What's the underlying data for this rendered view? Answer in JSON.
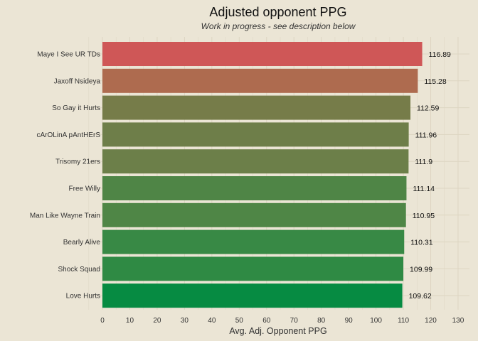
{
  "chart_data": {
    "type": "bar",
    "orientation": "horizontal",
    "title": "Adjusted opponent PPG",
    "subtitle": "Work in progress - see description below",
    "xlabel": "Avg. Adj. Opponent PPG",
    "ylabel": "",
    "xlim": [
      0,
      130
    ],
    "xticks": [
      0,
      10,
      20,
      30,
      40,
      50,
      60,
      70,
      80,
      90,
      100,
      110,
      120,
      130
    ],
    "grid": true,
    "legend": "none",
    "categories": [
      "Maye I See UR TDs",
      "Jaxoff Nsideya",
      "So Gay it Hurts",
      "cArOLinA pAntHErS",
      "Trisomy 21ers",
      "Free Willy",
      "Man Like Wayne Train",
      "Bearly Alive",
      "Shock Squad",
      "Love Hurts"
    ],
    "values": [
      116.89,
      115.28,
      112.59,
      111.96,
      111.9,
      111.14,
      110.95,
      110.31,
      109.99,
      109.62
    ],
    "value_labels": [
      "116.89",
      "115.28",
      "112.59",
      "111.96",
      "111.9",
      "111.14",
      "110.95",
      "110.31",
      "109.99",
      "109.62"
    ],
    "colors": [
      "#cf5757",
      "#ae6b4f",
      "#767c49",
      "#6e7e49",
      "#6c7f49",
      "#4f8546",
      "#4f8646",
      "#388945",
      "#2f8a44",
      "#068b42"
    ],
    "background": "#ebe5d5"
  }
}
